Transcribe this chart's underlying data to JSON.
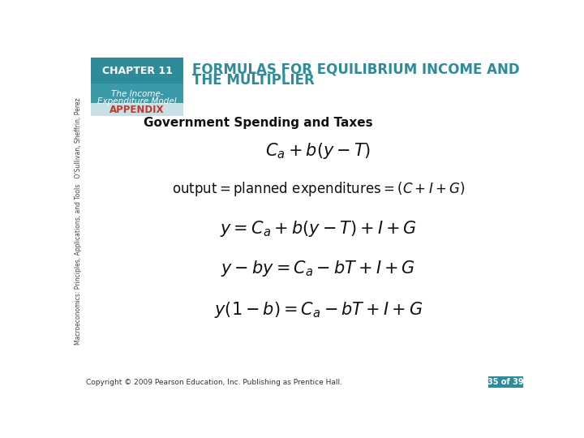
{
  "bg_color": "#ffffff",
  "header_box_color": "#2e8b9a",
  "chapter_text": "CHAPTER 11",
  "subtext1": "The Income-",
  "subtext2": "Expenditure Model",
  "appendix_bg": "#c8e0e5",
  "appendix_text": "APPENDIX",
  "appendix_color": "#c0392b",
  "title_text1": "FORMULAS FOR EQUILIBRIUM INCOME AND",
  "title_text2": "THE MULTIPLIER",
  "title_color": "#2e8b9a",
  "section_title": "Government Spending and Taxes",
  "sidebar_text": "Macroeconomics: Principles, Applications, and Tools   O’Sullivan, Sheffrin, Perez",
  "footer_text": "Copyright © 2009 Pearson Education, Inc. Publishing as Prentice Hall.",
  "page_text": "35 of 39",
  "page_bg": "#2e8b9a"
}
